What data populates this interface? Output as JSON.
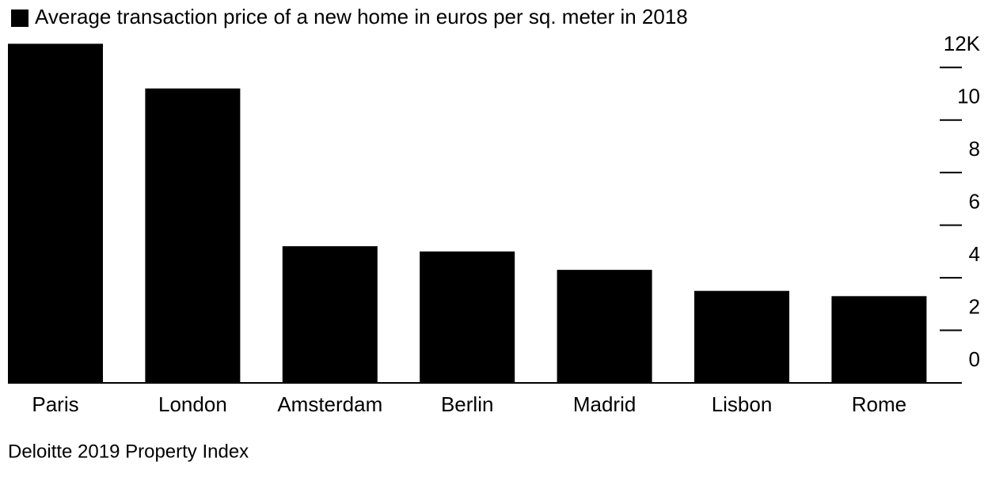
{
  "chart_data": {
    "type": "bar",
    "legend": "Average transaction price of a new home in euros per sq. meter in 2018",
    "source": "Deloitte 2019 Property Index",
    "categories": [
      "Paris",
      "London",
      "Amsterdam",
      "Berlin",
      "Madrid",
      "Lisbon",
      "Rome"
    ],
    "values": [
      12900,
      11200,
      5200,
      5000,
      4300,
      3500,
      3300
    ],
    "color": "#000000",
    "ylim": [
      0,
      13000
    ],
    "yticks": [
      0,
      {
        "value": 2000,
        "label": "2"
      },
      {
        "value": 4000,
        "label": "4"
      },
      {
        "value": 6000,
        "label": "6"
      },
      {
        "value": 8000,
        "label": "8"
      },
      {
        "value": 10000,
        "label": "10"
      },
      {
        "value": 12000,
        "label": "12K"
      }
    ]
  }
}
